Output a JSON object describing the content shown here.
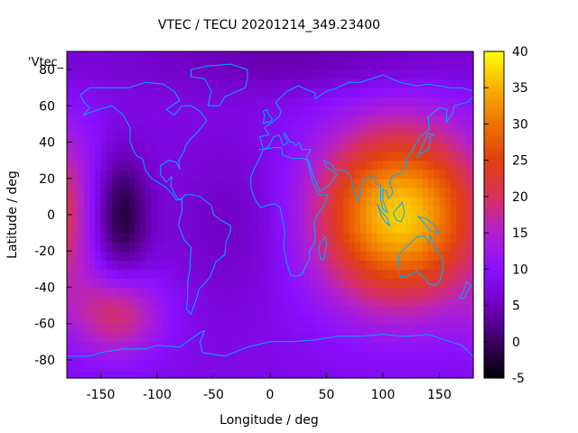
{
  "chart_data": {
    "type": "heatmap",
    "title": "VTEC / TECU 20201214_349.23400",
    "legend_key": "'Vtec_",
    "xlabel": "Longitude / deg",
    "ylabel": "Latitude / deg",
    "xlim": [
      -180,
      180
    ],
    "ylim": [
      -90,
      90
    ],
    "x_ticks": [
      -150,
      -100,
      -50,
      0,
      50,
      100,
      150
    ],
    "y_ticks": [
      -80,
      -60,
      -40,
      -20,
      0,
      20,
      40,
      60,
      80
    ],
    "colorbar": {
      "range": [
        -5,
        40
      ],
      "ticks": [
        -5,
        0,
        5,
        10,
        15,
        20,
        25,
        30,
        35,
        40
      ],
      "palette": [
        "#000000",
        "#3a0060",
        "#7000c0",
        "#8a10ff",
        "#b020d0",
        "#d83060",
        "#e04010",
        "#f07000",
        "#f8b000",
        "#ffff00"
      ]
    },
    "background_vtec": 8,
    "features": [
      {
        "name": "minimum central Pacific",
        "lon": -133,
        "lat": 0,
        "vtec": -4
      },
      {
        "name": "maximum Indonesia",
        "lon": 115,
        "lat": 0,
        "vtec": 37
      },
      {
        "name": "secondary maximum South Pacific",
        "lon": -135,
        "lat": -55,
        "vtec": 19
      },
      {
        "name": "low Arctic",
        "lon": 30,
        "lat": 85,
        "vtec": 4
      },
      {
        "name": "low South Atlantic",
        "lon": -30,
        "lat": -5,
        "vtec": 5
      }
    ],
    "coastlines": true,
    "grid": false
  }
}
